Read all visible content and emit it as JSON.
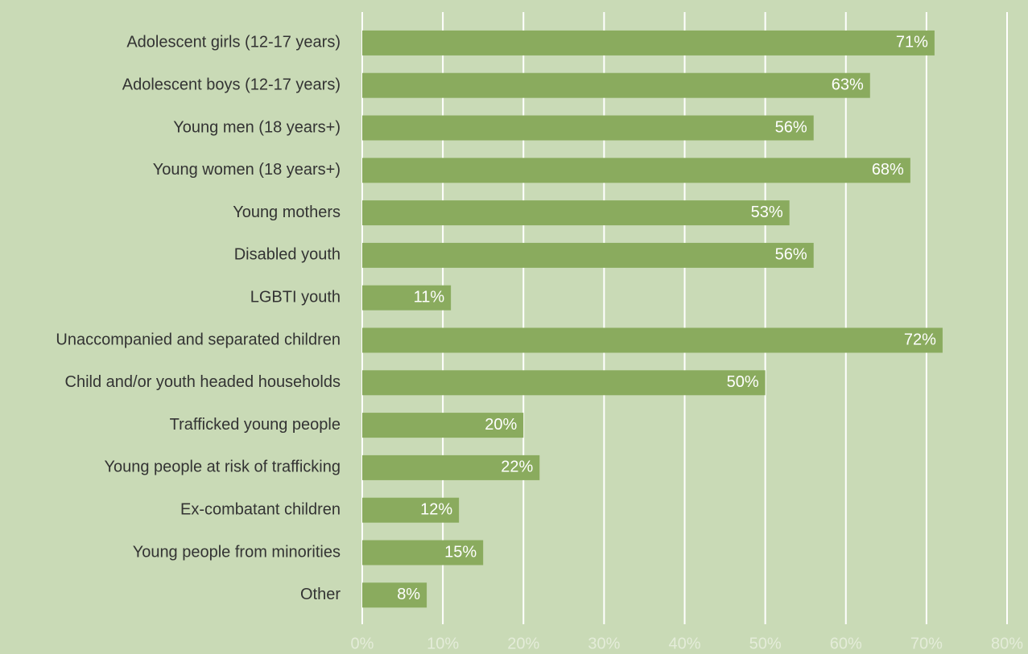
{
  "chart_data": {
    "type": "barh",
    "categories": [
      "Adolescent girls (12-17 years)",
      "Adolescent boys (12-17 years)",
      "Young men (18 years+)",
      "Young women (18 years+)",
      "Young mothers",
      "Disabled youth",
      "LGBTI youth",
      "Unaccompanied and separated children",
      "Child and/or youth headed households",
      "Trafficked young people",
      "Young people at risk of trafficking",
      "Ex-combatant children",
      "Young people from minorities",
      "Other"
    ],
    "values": [
      71,
      63,
      56,
      68,
      53,
      56,
      11,
      72,
      50,
      20,
      22,
      12,
      15,
      8
    ],
    "value_labels": [
      "71%",
      "63%",
      "56%",
      "68%",
      "53%",
      "56%",
      "11%",
      "72%",
      "50%",
      "20%",
      "22%",
      "12%",
      "15%",
      "8%"
    ],
    "color": "#8aab5e",
    "xlim": [
      0,
      80
    ],
    "xticks": [
      {
        "value": 0,
        "label": "0%"
      },
      {
        "value": 10,
        "label": "10%"
      },
      {
        "value": 20,
        "label": "20%"
      },
      {
        "value": 30,
        "label": "30%"
      },
      {
        "value": 40,
        "label": "40%"
      },
      {
        "value": 50,
        "label": "50%"
      },
      {
        "value": 60,
        "label": "60%"
      },
      {
        "value": 70,
        "label": "70%"
      },
      {
        "value": 80,
        "label": "80%"
      }
    ],
    "grid": true
  }
}
